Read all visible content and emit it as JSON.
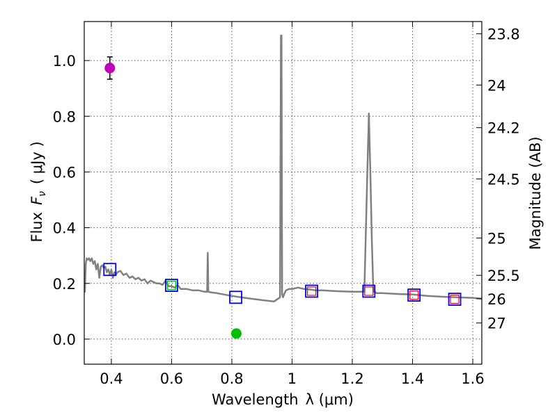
{
  "chart_data": {
    "type": "line",
    "xlabel": "Wavelength",
    "xlabel_symbol": "λ (μm)",
    "ylabel": "Flux",
    "ylabel_symbol": "F",
    "ylabel_subscript": "ν",
    "ylabel_units": "( μJy )",
    "y2label": "Magnitude (AB)",
    "xlim": [
      0.31,
      1.63
    ],
    "ylim": [
      -0.09,
      1.14
    ],
    "grid": true,
    "x_ticks": [
      {
        "value": 0.4,
        "label": "0.4"
      },
      {
        "value": 0.6,
        "label": "0.6"
      },
      {
        "value": 0.8,
        "label": "0.8"
      },
      {
        "value": 1.0,
        "label": "1"
      },
      {
        "value": 1.2,
        "label": "1.2"
      },
      {
        "value": 1.4,
        "label": "1.4"
      },
      {
        "value": 1.6,
        "label": "1.6"
      }
    ],
    "y_ticks": [
      {
        "value": 0.0,
        "label": "0.0"
      },
      {
        "value": 0.2,
        "label": "0.2"
      },
      {
        "value": 0.4,
        "label": "0.4"
      },
      {
        "value": 0.6,
        "label": "0.6"
      },
      {
        "value": 0.8,
        "label": "0.8"
      },
      {
        "value": 1.0,
        "label": "1.0"
      }
    ],
    "y2_ticks": [
      {
        "flux": 1.096,
        "label": "23.8"
      },
      {
        "flux": 0.912,
        "label": "24"
      },
      {
        "flux": 0.759,
        "label": "24.2"
      },
      {
        "flux": 0.575,
        "label": "24.5"
      },
      {
        "flux": 0.363,
        "label": "25"
      },
      {
        "flux": 0.229,
        "label": "25.5"
      },
      {
        "flux": 0.145,
        "label": "26"
      },
      {
        "flux": 0.058,
        "label": "27"
      }
    ],
    "series": [
      {
        "name": "model spectrum",
        "color": "#808080",
        "x": [
          0.31,
          0.312,
          0.315,
          0.318,
          0.322,
          0.326,
          0.33,
          0.335,
          0.34,
          0.345,
          0.35,
          0.355,
          0.36,
          0.365,
          0.37,
          0.375,
          0.38,
          0.385,
          0.39,
          0.395,
          0.4,
          0.405,
          0.41,
          0.415,
          0.42,
          0.43,
          0.44,
          0.45,
          0.46,
          0.47,
          0.48,
          0.49,
          0.5,
          0.51,
          0.52,
          0.53,
          0.54,
          0.55,
          0.56,
          0.57,
          0.58,
          0.59,
          0.6,
          0.61,
          0.62,
          0.63,
          0.65,
          0.67,
          0.69,
          0.71,
          0.718,
          0.72,
          0.722,
          0.73,
          0.75,
          0.8,
          0.85,
          0.9,
          0.94,
          0.96,
          0.963,
          0.965,
          0.967,
          0.97,
          0.975,
          0.98,
          0.99,
          1.0,
          1.02,
          1.04,
          1.06,
          1.08,
          1.1,
          1.15,
          1.2,
          1.22,
          1.24,
          1.25,
          1.255,
          1.26,
          1.265,
          1.27,
          1.275,
          1.28,
          1.3,
          1.35,
          1.4,
          1.45,
          1.5,
          1.55,
          1.6,
          1.63
        ],
        "y": [
          0.17,
          0.17,
          0.27,
          0.29,
          0.285,
          0.29,
          0.28,
          0.29,
          0.27,
          0.28,
          0.25,
          0.27,
          0.22,
          0.26,
          0.265,
          0.255,
          0.26,
          0.24,
          0.25,
          0.23,
          0.25,
          0.22,
          0.24,
          0.23,
          0.24,
          0.245,
          0.23,
          0.235,
          0.22,
          0.225,
          0.215,
          0.22,
          0.21,
          0.215,
          0.2,
          0.21,
          0.205,
          0.2,
          0.2,
          0.195,
          0.21,
          0.19,
          0.19,
          0.185,
          0.195,
          0.18,
          0.18,
          0.175,
          0.175,
          0.17,
          0.17,
          0.31,
          0.17,
          0.168,
          0.165,
          0.155,
          0.147,
          0.14,
          0.135,
          0.15,
          1.09,
          1.09,
          0.16,
          0.15,
          0.165,
          0.175,
          0.18,
          0.18,
          0.185,
          0.18,
          0.178,
          0.175,
          0.175,
          0.172,
          0.17,
          0.17,
          0.17,
          0.6,
          0.81,
          0.6,
          0.35,
          0.17,
          0.17,
          0.165,
          0.165,
          0.162,
          0.16,
          0.155,
          0.152,
          0.15,
          0.148,
          0.145
        ]
      }
    ],
    "photometry": [
      {
        "x": 0.395,
        "y": 0.973,
        "yerr": 0.04,
        "color": "#bf00bf",
        "name": "magenta detection"
      },
      {
        "x": 0.815,
        "y": 0.02,
        "yerr": 0.012,
        "color": "#00bf00",
        "name": "green detection"
      }
    ],
    "band_fluxes": [
      {
        "x": 0.395,
        "y": 0.25,
        "edge": "#0000ff"
      },
      {
        "x": 0.6,
        "y": 0.193,
        "edge": "#0000ff",
        "inner": "#00bf00"
      },
      {
        "x": 0.813,
        "y": 0.15,
        "edge": "#0000ff"
      },
      {
        "x": 1.065,
        "y": 0.172,
        "edge": "#0000ff",
        "inner": "#ff0000"
      },
      {
        "x": 1.255,
        "y": 0.172,
        "edge": "#0000ff",
        "inner": "#ff0000"
      },
      {
        "x": 1.405,
        "y": 0.158,
        "edge": "#0000ff",
        "inner": "#ff0000"
      },
      {
        "x": 1.54,
        "y": 0.143,
        "edge": "#0000ff",
        "inner": "#ff0000"
      }
    ]
  }
}
